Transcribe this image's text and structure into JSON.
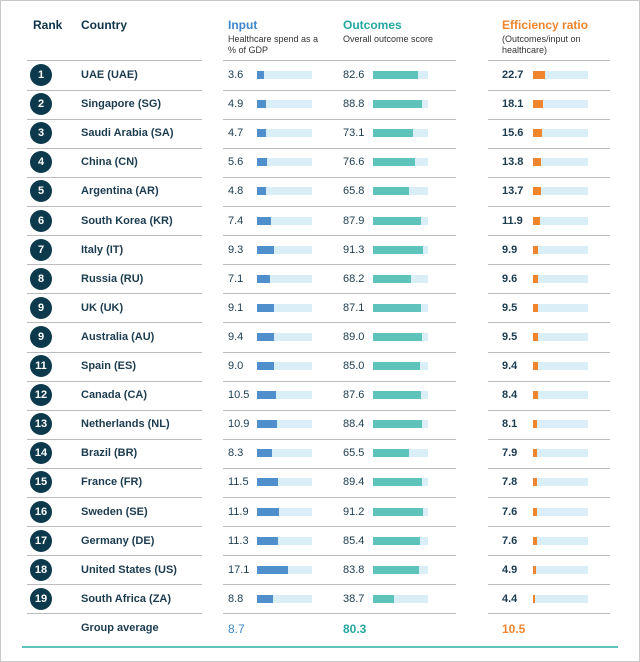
{
  "headers": {
    "rank": "Rank",
    "country": "Country",
    "input": "Input",
    "input_sub": "Healthcare spend as a % of GDP",
    "outcomes": "Outcomes",
    "outcomes_sub": "Overall outcome score",
    "efficiency": "Efficiency ratio",
    "efficiency_sub": "(Outcomes/input on healthcare)"
  },
  "colors": {
    "input": "#3e87c8",
    "outcomes": "#26a7a0",
    "efficiency": "#f0852d",
    "badge": "#0c3a4c"
  },
  "chart_data": {
    "type": "table",
    "columns": [
      "Rank",
      "Country",
      "Input",
      "Outcomes",
      "Efficiency ratio"
    ],
    "scales": {
      "input_max": 30,
      "outcomes_max": 100,
      "efficiency_max": 100
    },
    "rows": [
      {
        "rank": "1",
        "country": "UAE (UAE)",
        "input": "3.6",
        "outcomes": "82.6",
        "efficiency": "22.7"
      },
      {
        "rank": "2",
        "country": "Singapore (SG)",
        "input": "4.9",
        "outcomes": "88.8",
        "efficiency": "18.1"
      },
      {
        "rank": "3",
        "country": "Saudi Arabia (SA)",
        "input": "4.7",
        "outcomes": "73.1",
        "efficiency": "15.6"
      },
      {
        "rank": "4",
        "country": "China (CN)",
        "input": "5.6",
        "outcomes": "76.6",
        "efficiency": "13.8"
      },
      {
        "rank": "5",
        "country": "Argentina (AR)",
        "input": "4.8",
        "outcomes": "65.8",
        "efficiency": "13.7"
      },
      {
        "rank": "6",
        "country": "South Korea (KR)",
        "input": "7.4",
        "outcomes": "87.9",
        "efficiency": "11.9"
      },
      {
        "rank": "7",
        "country": "Italy (IT)",
        "input": "9.3",
        "outcomes": "91.3",
        "efficiency": "9.9"
      },
      {
        "rank": "8",
        "country": "Russia (RU)",
        "input": "7.1",
        "outcomes": "68.2",
        "efficiency": "9.6"
      },
      {
        "rank": "9",
        "country": "UK (UK)",
        "input": "9.1",
        "outcomes": "87.1",
        "efficiency": "9.5"
      },
      {
        "rank": "9",
        "country": "Australia (AU)",
        "input": "9.4",
        "outcomes": "89.0",
        "efficiency": "9.5"
      },
      {
        "rank": "11",
        "country": "Spain (ES)",
        "input": "9.0",
        "outcomes": "85.0",
        "efficiency": "9.4"
      },
      {
        "rank": "12",
        "country": "Canada (CA)",
        "input": "10.5",
        "outcomes": "87.6",
        "efficiency": "8.4"
      },
      {
        "rank": "13",
        "country": "Netherlands (NL)",
        "input": "10.9",
        "outcomes": "88.4",
        "efficiency": "8.1"
      },
      {
        "rank": "14",
        "country": "Brazil (BR)",
        "input": "8.3",
        "outcomes": "65.5",
        "efficiency": "7.9"
      },
      {
        "rank": "15",
        "country": "France (FR)",
        "input": "11.5",
        "outcomes": "89.4",
        "efficiency": "7.8"
      },
      {
        "rank": "16",
        "country": "Sweden (SE)",
        "input": "11.9",
        "outcomes": "91.2",
        "efficiency": "7.6"
      },
      {
        "rank": "17",
        "country": "Germany (DE)",
        "input": "11.3",
        "outcomes": "85.4",
        "efficiency": "7.6"
      },
      {
        "rank": "18",
        "country": "United States (US)",
        "input": "17.1",
        "outcomes": "83.8",
        "efficiency": "4.9"
      },
      {
        "rank": "19",
        "country": "South Africa (ZA)",
        "input": "8.8",
        "outcomes": "38.7",
        "efficiency": "4.4"
      }
    ],
    "average": {
      "label": "Group average",
      "input": "8.7",
      "outcomes": "80.3",
      "efficiency": "10.5"
    }
  }
}
